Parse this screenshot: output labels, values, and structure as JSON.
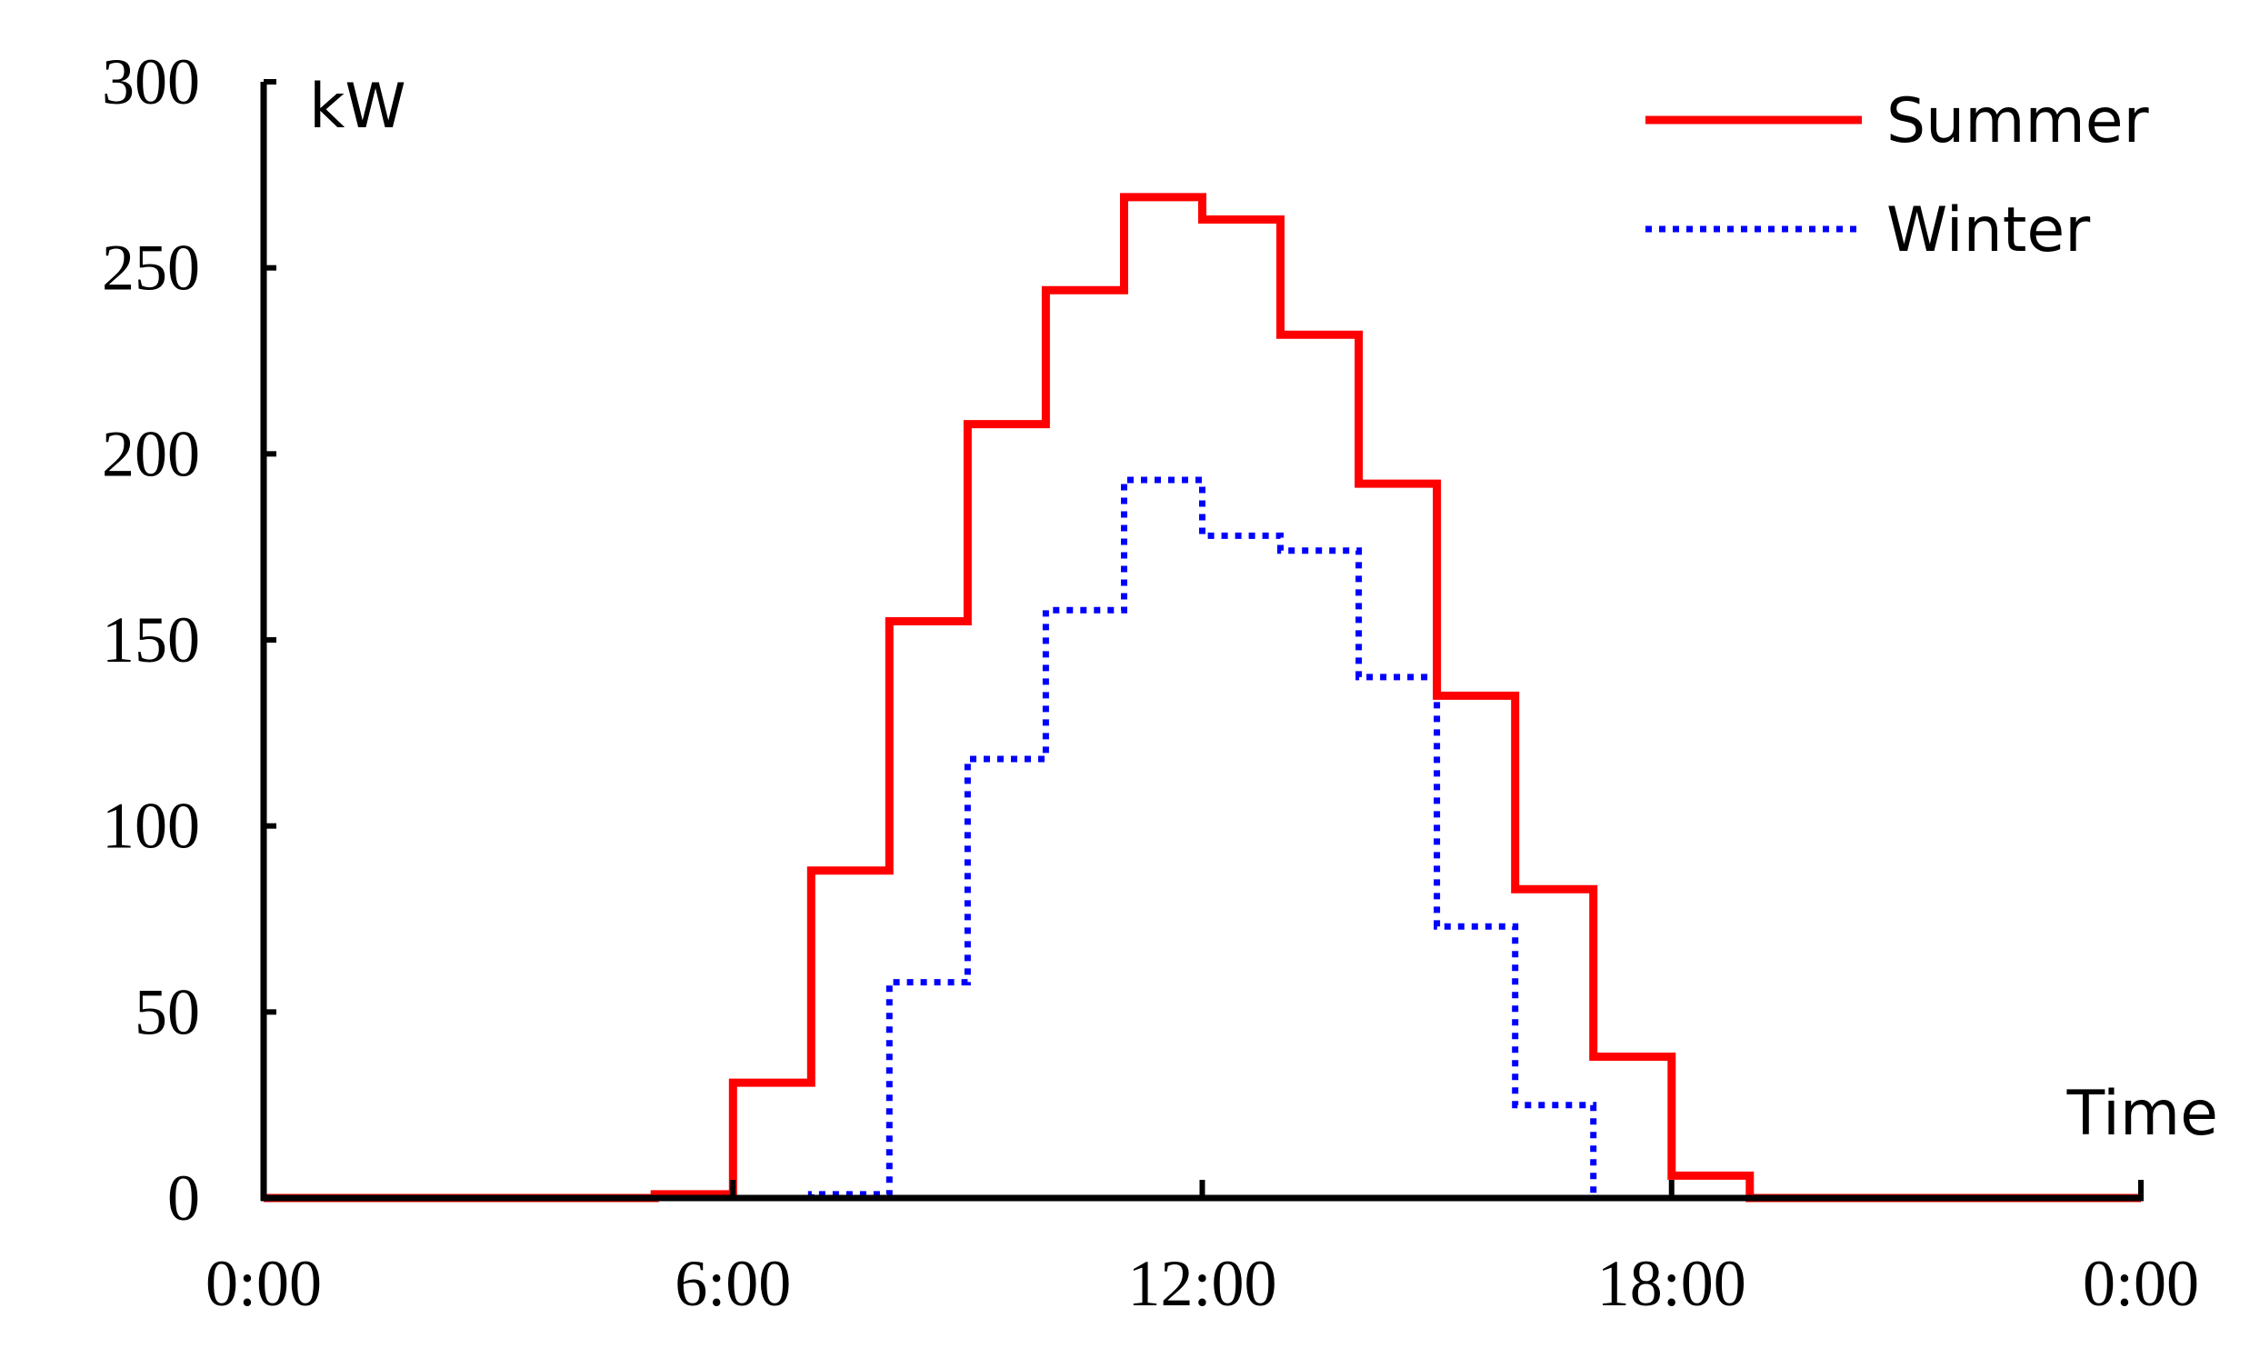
{
  "chart_data": {
    "type": "line",
    "step": true,
    "title": "",
    "xlabel": "Time",
    "ylabel": "kW",
    "xlim": [
      0,
      24
    ],
    "ylim": [
      0,
      300
    ],
    "x_ticks": [
      0,
      6,
      12,
      18,
      24
    ],
    "x_tick_labels": [
      "0:00",
      "6:00",
      "12:00",
      "18:00",
      "0:00"
    ],
    "y_ticks": [
      0,
      50,
      100,
      150,
      200,
      250,
      300
    ],
    "y_tick_labels": [
      "0",
      "50",
      "100",
      "150",
      "200",
      "250",
      "300"
    ],
    "grid": false,
    "legend": "top-right",
    "hours": [
      0,
      1,
      2,
      3,
      4,
      5,
      6,
      7,
      8,
      9,
      10,
      11,
      12,
      13,
      14,
      15,
      16,
      17,
      18,
      19,
      20,
      21,
      22,
      23
    ],
    "series": [
      {
        "name": "Summer",
        "color": "#ff0000",
        "style": "solid",
        "values": [
          0,
          0,
          0,
          0,
          0,
          1,
          31,
          88,
          155,
          208,
          244,
          269,
          263,
          232,
          192,
          135,
          83,
          38,
          6,
          0,
          0,
          0,
          0,
          0
        ]
      },
      {
        "name": "Winter",
        "color": "#0000ff",
        "style": "dotted",
        "values": [
          0,
          0,
          0,
          0,
          0,
          0,
          0,
          1,
          58,
          118,
          158,
          193,
          178,
          174,
          140,
          73,
          25,
          0,
          0,
          0,
          0,
          0,
          0,
          0
        ]
      }
    ]
  }
}
